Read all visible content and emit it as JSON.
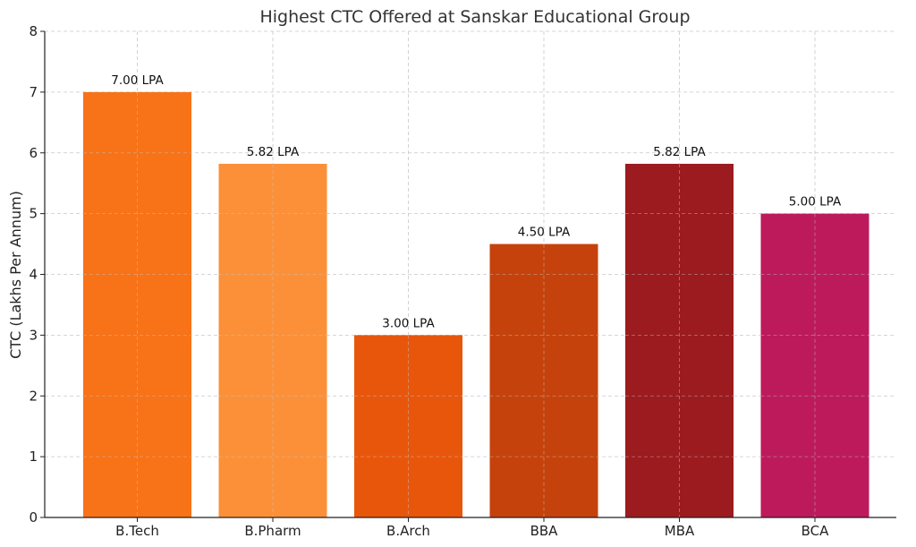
{
  "chart_data": {
    "type": "bar",
    "title": "Highest CTC Offered at Sanskar Educational Group",
    "xlabel": "",
    "ylabel": "CTC (Lakhs Per Annum)",
    "categories": [
      "B.Tech",
      "B.Pharm",
      "B.Arch",
      "BBA",
      "MBA",
      "BCA"
    ],
    "values": [
      7.0,
      5.82,
      3.0,
      4.5,
      5.82,
      5.0
    ],
    "data_labels": [
      "7.00 LPA",
      "5.82 LPA",
      "3.00 LPA",
      "4.50 LPA",
      "5.82 LPA",
      "5.00 LPA"
    ],
    "colors": [
      "#f87217",
      "#fb9039",
      "#e8560c",
      "#c5420c",
      "#9b1b1e",
      "#bc1a5b"
    ],
    "ylim": [
      0,
      8
    ],
    "yticks": [
      0,
      1,
      2,
      3,
      4,
      5,
      6,
      7,
      8
    ],
    "grid": true
  }
}
